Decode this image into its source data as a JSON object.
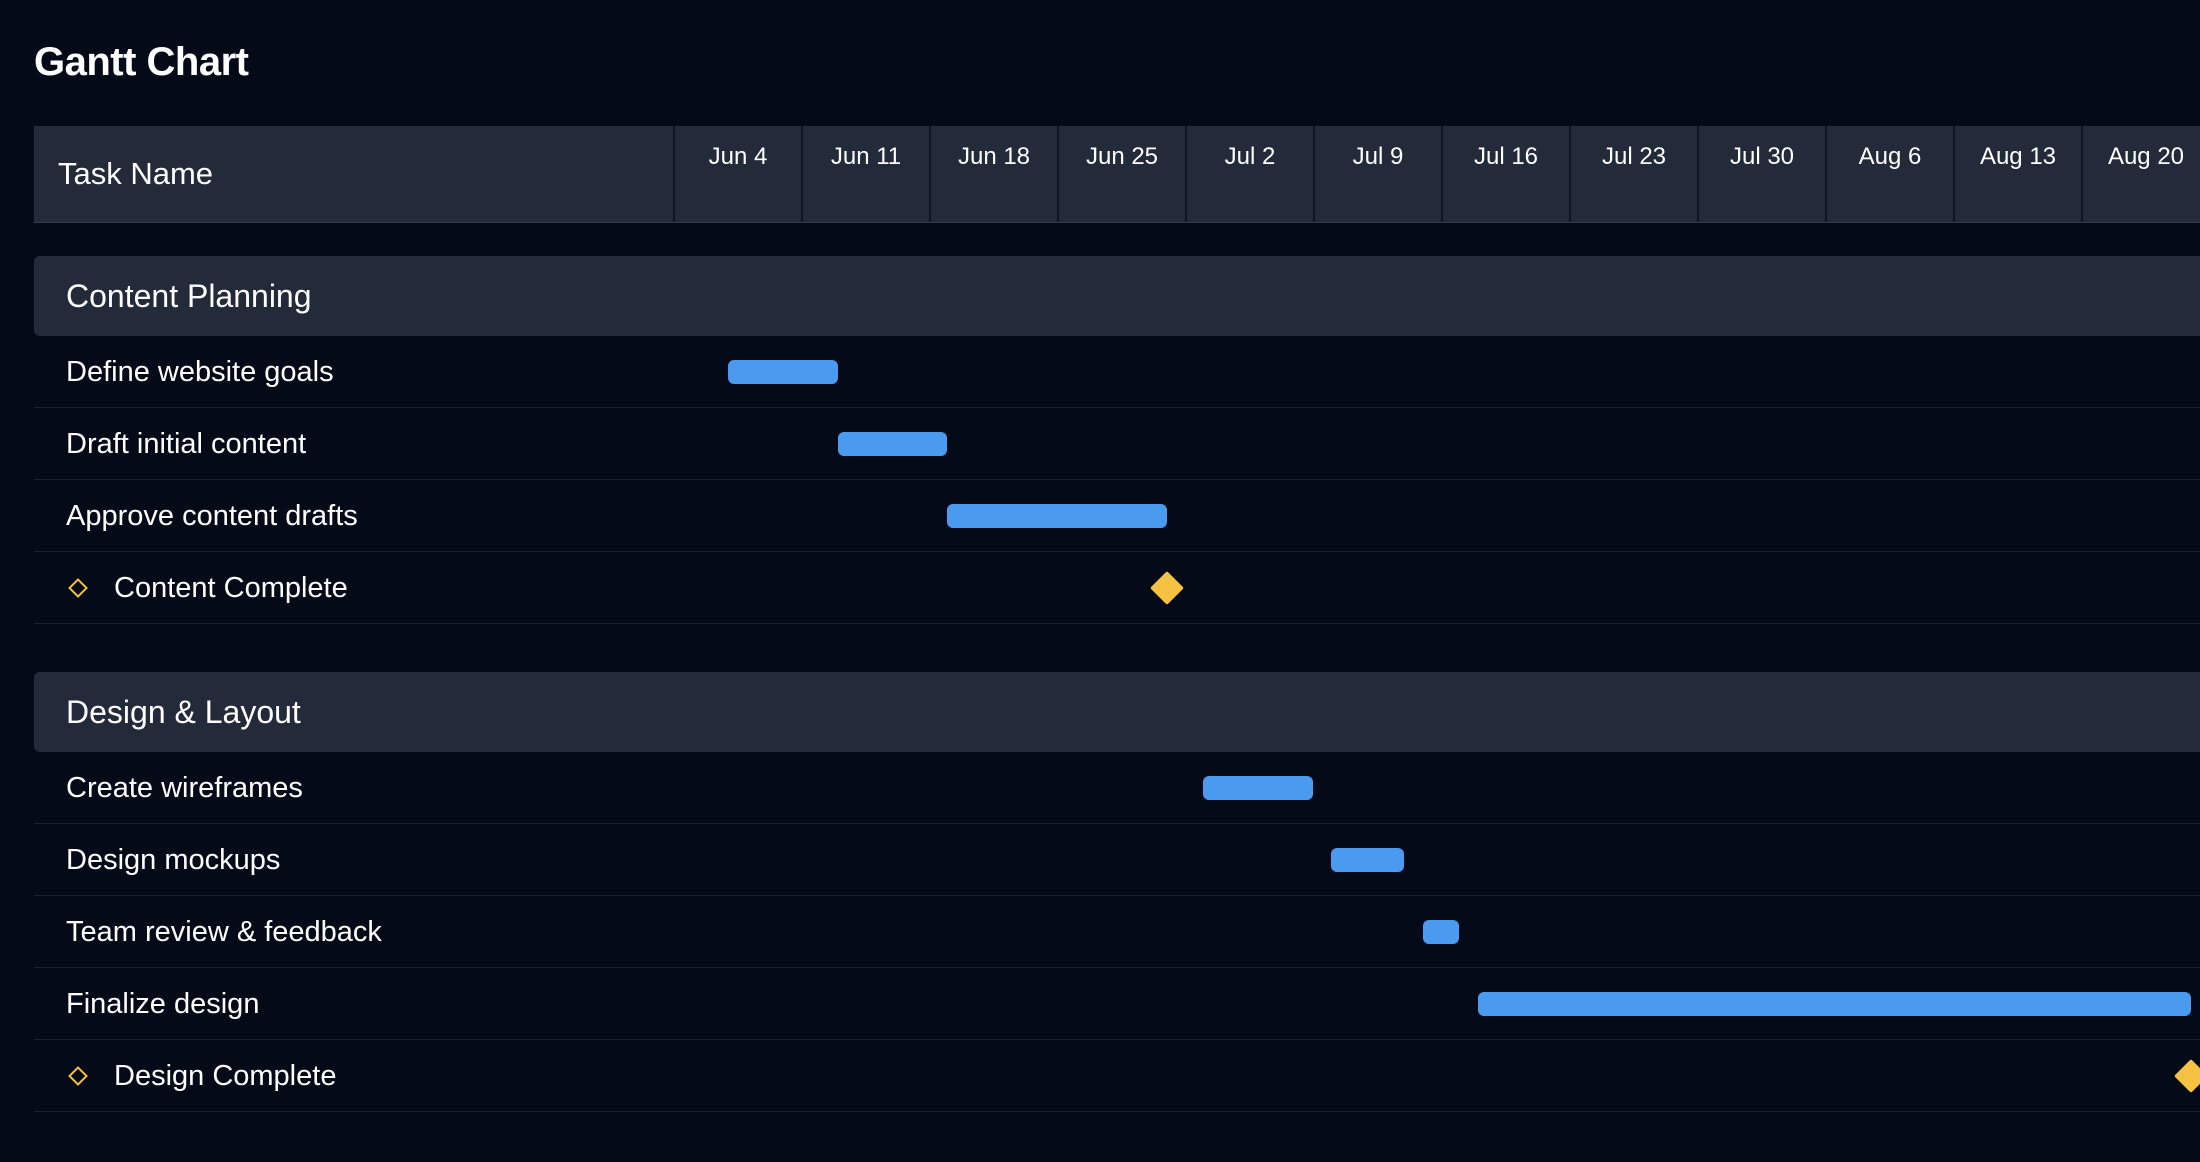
{
  "page": {
    "title": "Gantt Chart"
  },
  "header": {
    "task_column": "Task Name"
  },
  "colors": {
    "background": "#050a18",
    "header_bg": "#232a3a",
    "bar": "#4a9bef",
    "milestone": "#f5c242"
  },
  "chart_data": {
    "type": "gantt",
    "title": "Gantt Chart",
    "timeline_ticks": [
      "Jun 4",
      "Jun 11",
      "Jun 18",
      "Jun 25",
      "Jul 2",
      "Jul 9",
      "Jul 16",
      "Jul 23",
      "Jul 30",
      "Aug 6",
      "Aug 13",
      "Aug 20"
    ],
    "groups": [
      {
        "name": "Content Planning",
        "tasks": [
          {
            "name": "Define website goals",
            "start": "2024-06-07",
            "end": "2024-06-13",
            "milestone": false
          },
          {
            "name": "Draft initial content",
            "start": "2024-06-13",
            "end": "2024-06-19",
            "milestone": false
          },
          {
            "name": "Approve content drafts",
            "start": "2024-06-19",
            "end": "2024-07-01",
            "milestone": false
          },
          {
            "name": "Content Complete",
            "date": "2024-07-01",
            "milestone": true
          }
        ]
      },
      {
        "name": "Design & Layout",
        "tasks": [
          {
            "name": "Create wireframes",
            "start": "2024-07-03",
            "end": "2024-07-09",
            "milestone": false
          },
          {
            "name": "Design mockups",
            "start": "2024-07-10",
            "end": "2024-07-14",
            "milestone": false
          },
          {
            "name": "Team review & feedback",
            "start": "2024-07-15",
            "end": "2024-07-17",
            "milestone": false
          },
          {
            "name": "Finalize design",
            "start": "2024-07-18",
            "end": "2024-08-26",
            "milestone": false
          },
          {
            "name": "Design Complete",
            "date": "2024-08-26",
            "milestone": true
          }
        ]
      }
    ]
  }
}
